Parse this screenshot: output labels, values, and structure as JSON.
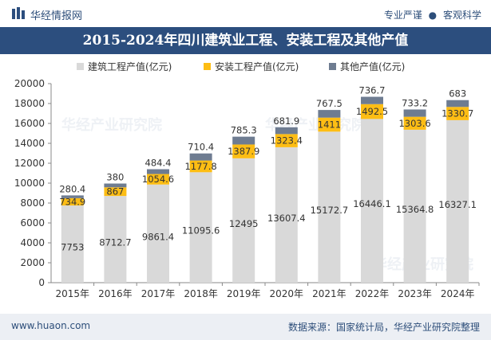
{
  "header": {
    "brand": "华经情报网",
    "slogan_left": "专业严谨",
    "slogan_sep": "●",
    "slogan_right": "客观科学"
  },
  "footer": {
    "url": "www.huaon.com",
    "source": "数据来源：国家统计局，华经产业研究院整理"
  },
  "watermark": "华经产业研究院",
  "colors": {
    "title_bg": "#2c4e7e",
    "construction": "#d9d9d9",
    "installation": "#fdbd14",
    "other": "#6e7c91",
    "footer_bg": "#eceff4"
  },
  "chart_data": {
    "type": "bar",
    "stacked": true,
    "title": "2015-2024年四川建筑业工程、安装工程及其他产值",
    "categories": [
      "2015年",
      "2016年",
      "2017年",
      "2018年",
      "2019年",
      "2020年",
      "2021年",
      "2022年",
      "2023年",
      "2024年"
    ],
    "series": [
      {
        "name": "建筑工程产值(亿元)",
        "color": "#d9d9d9",
        "values": [
          7753,
          8712.7,
          9861.4,
          11095.6,
          12495,
          13607.4,
          15172.7,
          16446.1,
          15364.8,
          16327.1
        ]
      },
      {
        "name": "安装工程产值(亿元)",
        "color": "#fdbd14",
        "values": [
          734.9,
          867,
          1054.6,
          1177.8,
          1387.9,
          1323.4,
          1411,
          1492.5,
          1303.6,
          1330.7
        ]
      },
      {
        "name": "其他产值(亿元)",
        "color": "#6e7c91",
        "values": [
          280.4,
          380,
          484.4,
          710.4,
          785.3,
          681.9,
          767.5,
          736.7,
          733.2,
          683
        ]
      }
    ],
    "ylim": [
      0,
      20000
    ],
    "yticks": [
      0,
      2000,
      4000,
      6000,
      8000,
      10000,
      12000,
      14000,
      16000,
      18000,
      20000
    ],
    "grid": false,
    "legend": "top-center",
    "xlabel": "",
    "ylabel": ""
  }
}
